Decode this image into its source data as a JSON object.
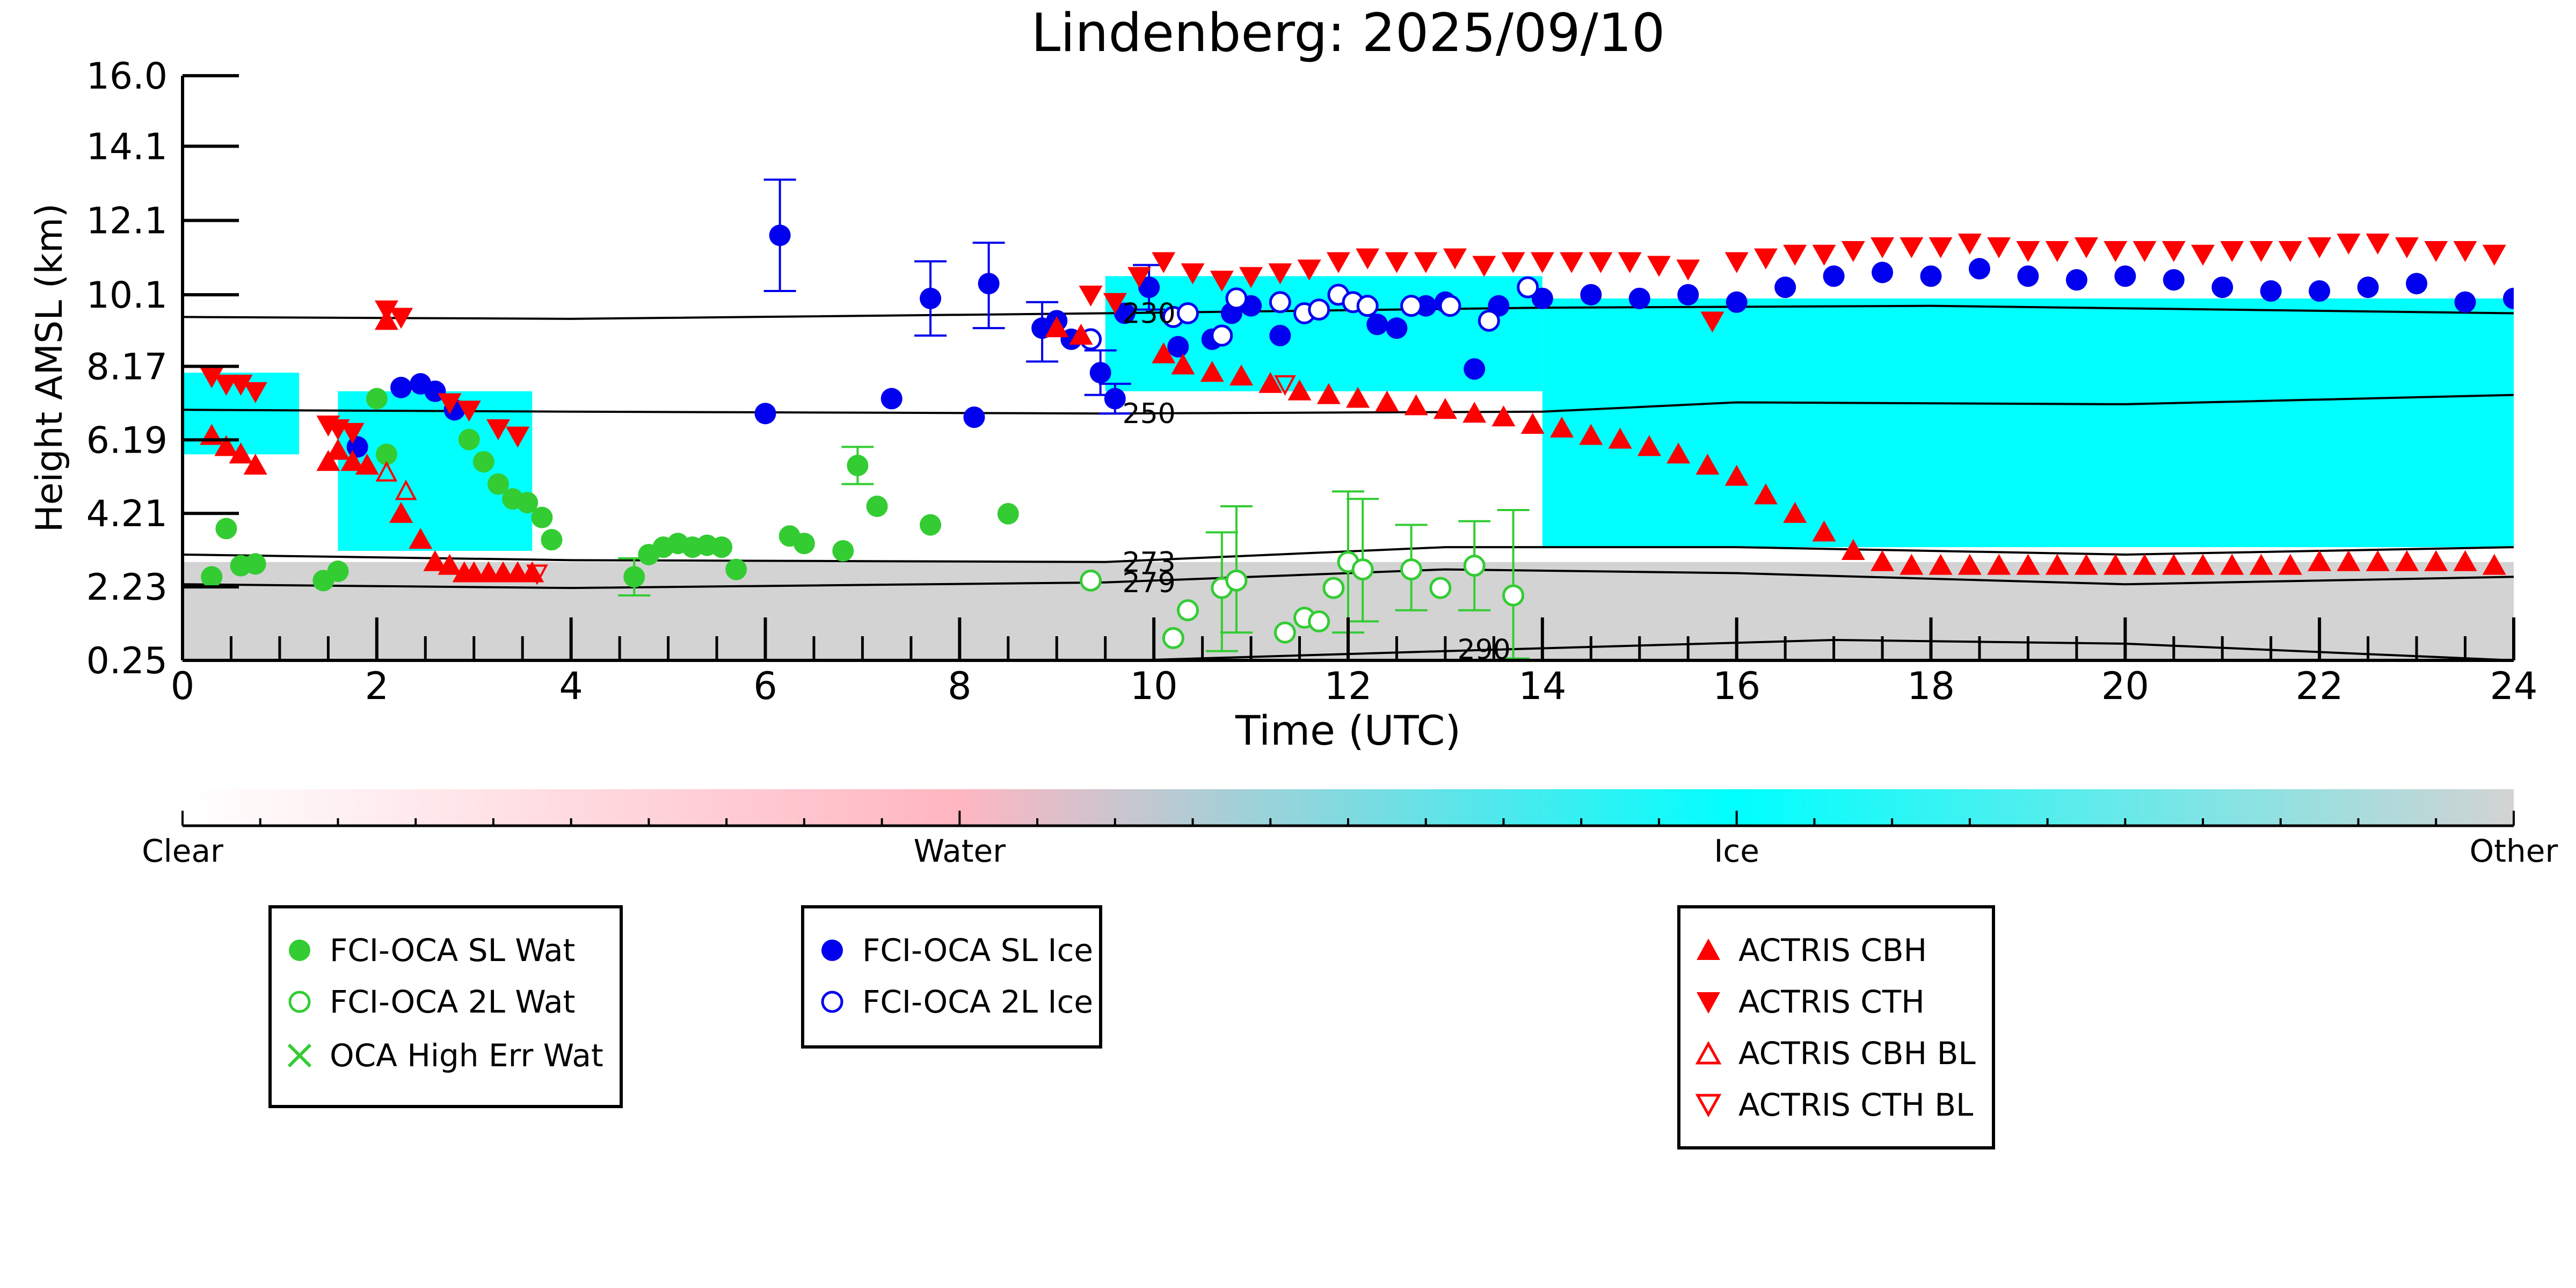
{
  "chart_data": {
    "type": "scatter",
    "title": "Lindenberg: 2025/09/10",
    "xlabel": "Time (UTC)",
    "ylabel": "Height AMSL (km)",
    "xlim": [
      0,
      24
    ],
    "ylim": [
      0.25,
      16.0
    ],
    "x_ticks": [
      "0",
      "2",
      "4",
      "6",
      "8",
      "10",
      "12",
      "14",
      "16",
      "18",
      "20",
      "22",
      "24"
    ],
    "y_ticks": [
      "0.25",
      "2.23",
      "4.21",
      "6.19",
      "8.17",
      "10.1",
      "12.1",
      "14.1",
      "16.0"
    ],
    "colorbar": {
      "labels": [
        "Clear",
        "Water",
        "Ice",
        "Other"
      ],
      "colors": [
        "#ffffff",
        "#ffb6c1",
        "#00ffff",
        "#d3d3d3"
      ]
    },
    "background_regions": [
      {
        "name": "Other",
        "color": "#d3d3d3",
        "x": [
          0,
          24
        ],
        "y": [
          0.25,
          2.9
        ]
      },
      {
        "name": "Ice",
        "color": "#00ffff",
        "x": [
          14,
          24
        ],
        "y": [
          3.3,
          10.0
        ]
      },
      {
        "name": "Ice",
        "color": "#00ffff",
        "x": [
          9.5,
          14
        ],
        "y": [
          7.5,
          10.6
        ]
      },
      {
        "name": "Ice",
        "color": "#00ffff",
        "x": [
          1.6,
          3.6
        ],
        "y": [
          3.2,
          7.5
        ]
      },
      {
        "name": "Ice",
        "color": "#00ffff",
        "x": [
          0,
          1.2
        ],
        "y": [
          5.8,
          8.0
        ]
      }
    ],
    "contours": [
      {
        "label": "230",
        "x": [
          0,
          4,
          9.5,
          14,
          18,
          24
        ],
        "y": [
          9.5,
          9.45,
          9.6,
          9.75,
          9.8,
          9.6
        ]
      },
      {
        "label": "250",
        "x": [
          0,
          4,
          9.5,
          14,
          16,
          20,
          24
        ],
        "y": [
          7.0,
          6.95,
          6.9,
          6.95,
          7.2,
          7.15,
          7.4
        ]
      },
      {
        "label": "273",
        "x": [
          0,
          4,
          9.5,
          13,
          16,
          20,
          24
        ],
        "y": [
          3.1,
          2.95,
          2.9,
          3.3,
          3.3,
          3.1,
          3.3
        ]
      },
      {
        "label": "279",
        "x": [
          0,
          4,
          9.5,
          13,
          16,
          20,
          24
        ],
        "y": [
          2.3,
          2.2,
          2.35,
          2.7,
          2.6,
          2.3,
          2.5
        ]
      },
      {
        "label": "290",
        "x": [
          9.8,
          13,
          17,
          20,
          24
        ],
        "y": [
          0.25,
          0.5,
          0.8,
          0.7,
          0.25
        ]
      }
    ],
    "series": [
      {
        "name": "FCI-OCA SL Wat",
        "marker": "filled-circle",
        "color": "#33cc33",
        "x": [
          0.3,
          0.45,
          0.6,
          0.75,
          1.45,
          1.6,
          2.0,
          2.1,
          2.95,
          3.1,
          3.25,
          3.4,
          3.55,
          3.7,
          3.8,
          4.65,
          4.8,
          4.95,
          5.1,
          5.25,
          5.4,
          5.55,
          5.7,
          6.25,
          6.4,
          6.8,
          6.95,
          7.15,
          7.7,
          8.5
        ],
        "y": [
          2.5,
          3.8,
          2.8,
          2.85,
          2.4,
          2.65,
          7.3,
          5.8,
          6.2,
          5.6,
          5.0,
          4.6,
          4.5,
          4.1,
          3.5,
          2.5,
          3.1,
          3.3,
          3.4,
          3.3,
          3.35,
          3.3,
          2.7,
          3.6,
          3.4,
          3.2,
          5.5,
          4.4,
          3.9,
          4.2
        ]
      },
      {
        "name": "FCI-OCA 2L Wat",
        "marker": "open-circle",
        "color": "#33cc33",
        "x": [
          9.35,
          10.2,
          10.35,
          10.7,
          10.85,
          11.35,
          11.55,
          11.7,
          11.85,
          12.0,
          12.15,
          12.65,
          12.95,
          13.3,
          13.7
        ],
        "y": [
          2.4,
          0.85,
          1.6,
          2.2,
          2.4,
          1.0,
          1.4,
          1.3,
          2.2,
          2.9,
          2.7,
          2.7,
          2.2,
          2.8,
          2.0
        ]
      },
      {
        "name": "OCA High Err Wat",
        "marker": "x",
        "color": "#33cc33",
        "x": [],
        "y": []
      },
      {
        "name": "FCI-OCA SL Ice",
        "marker": "filled-circle",
        "color": "#0000ee",
        "x": [
          1.8,
          2.25,
          2.45,
          2.6,
          2.8,
          6.0,
          6.15,
          7.3,
          7.7,
          8.15,
          8.3,
          8.85,
          9.0,
          9.15,
          9.45,
          9.6,
          9.7,
          9.95,
          10.25,
          10.6,
          10.8,
          11.0,
          11.3,
          12.3,
          12.5,
          12.8,
          13.0,
          13.3,
          13.55,
          14.0,
          14.5,
          15.0,
          15.5,
          16.0,
          16.5,
          17.0,
          17.5,
          18.0,
          18.5,
          19.0,
          19.5,
          20.0,
          20.5,
          21.0,
          21.5,
          22.0,
          22.5,
          23.0,
          23.5,
          24.0
        ],
        "y": [
          6.0,
          7.6,
          7.7,
          7.5,
          7.0,
          6.9,
          11.7,
          7.3,
          10.0,
          6.8,
          10.4,
          9.2,
          9.4,
          8.9,
          8.0,
          7.3,
          9.6,
          10.3,
          8.7,
          8.9,
          9.6,
          9.8,
          9.0,
          9.3,
          9.2,
          9.8,
          9.9,
          8.1,
          9.8,
          10.0,
          10.1,
          10.0,
          10.1,
          9.9,
          10.3,
          10.6,
          10.7,
          10.6,
          10.8,
          10.6,
          10.5,
          10.6,
          10.5,
          10.3,
          10.2,
          10.2,
          10.3,
          10.4,
          9.9,
          10.0
        ]
      },
      {
        "name": "FCI-OCA 2L Ice",
        "marker": "open-circle",
        "color": "#0000ee",
        "x": [
          9.35,
          10.2,
          10.35,
          10.7,
          10.85,
          11.3,
          11.55,
          11.7,
          11.9,
          12.05,
          12.2,
          12.65,
          13.05,
          13.45,
          13.85
        ],
        "y": [
          8.9,
          9.5,
          9.6,
          9.0,
          10.0,
          9.9,
          9.6,
          9.7,
          10.1,
          9.9,
          9.8,
          9.8,
          9.8,
          9.4,
          10.3
        ]
      },
      {
        "name": "ACTRIS CBH",
        "marker": "triangle-up",
        "color": "#ff0000",
        "x": [
          0.3,
          0.45,
          0.6,
          0.75,
          1.5,
          1.6,
          1.75,
          1.9,
          2.1,
          2.25,
          2.45,
          2.6,
          2.75,
          2.9,
          3.0,
          3.15,
          3.3,
          3.45,
          3.6,
          9.0,
          9.25,
          10.1,
          10.3,
          10.6,
          10.9,
          11.2,
          11.5,
          11.8,
          12.1,
          12.4,
          12.7,
          13.0,
          13.3,
          13.6,
          13.9,
          14.2,
          14.5,
          14.8,
          15.1,
          15.4,
          15.7,
          16.0,
          16.3,
          16.6,
          16.9,
          17.2,
          17.5,
          17.8,
          18.1,
          18.4,
          18.7,
          19.0,
          19.3,
          19.6,
          19.9,
          20.2,
          20.5,
          20.8,
          21.1,
          21.4,
          21.7,
          22.0,
          22.3,
          22.6,
          22.9,
          23.2,
          23.5,
          23.8
        ],
        "y": [
          6.3,
          6.0,
          5.8,
          5.5,
          5.6,
          5.9,
          5.6,
          5.5,
          9.4,
          4.2,
          3.5,
          2.9,
          2.8,
          2.6,
          2.6,
          2.6,
          2.6,
          2.6,
          2.6,
          9.2,
          9.0,
          8.5,
          8.2,
          8.0,
          7.9,
          7.7,
          7.5,
          7.4,
          7.3,
          7.2,
          7.1,
          7.0,
          6.9,
          6.8,
          6.6,
          6.5,
          6.3,
          6.2,
          6.0,
          5.8,
          5.5,
          5.2,
          4.7,
          4.2,
          3.7,
          3.2,
          2.9,
          2.8,
          2.8,
          2.8,
          2.8,
          2.8,
          2.8,
          2.8,
          2.8,
          2.8,
          2.8,
          2.8,
          2.8,
          2.8,
          2.8,
          2.9,
          2.9,
          2.9,
          2.9,
          2.9,
          2.9,
          2.8
        ]
      },
      {
        "name": "ACTRIS CTH",
        "marker": "triangle-down",
        "color": "#ff0000",
        "x": [
          0.3,
          0.45,
          0.6,
          0.75,
          1.5,
          1.6,
          1.75,
          2.1,
          2.25,
          2.75,
          2.95,
          3.25,
          3.45,
          9.35,
          9.6,
          9.85,
          10.1,
          10.4,
          10.7,
          11.0,
          11.3,
          11.6,
          11.9,
          12.2,
          12.5,
          12.8,
          13.1,
          13.4,
          13.7,
          14.0,
          14.3,
          14.6,
          14.9,
          15.2,
          15.5,
          15.75,
          16.0,
          16.3,
          16.6,
          16.9,
          17.2,
          17.5,
          17.8,
          18.1,
          18.4,
          18.7,
          19.0,
          19.3,
          19.6,
          19.9,
          20.2,
          20.5,
          20.8,
          21.1,
          21.4,
          21.7,
          22.0,
          22.3,
          22.6,
          22.9,
          23.2,
          23.5,
          23.8
        ],
        "y": [
          7.9,
          7.7,
          7.7,
          7.5,
          6.6,
          6.5,
          6.4,
          9.7,
          9.5,
          7.2,
          7.0,
          6.5,
          6.3,
          10.1,
          9.9,
          10.6,
          11.0,
          10.7,
          10.5,
          10.6,
          10.7,
          10.8,
          11.0,
          11.1,
          11.0,
          11.0,
          11.1,
          10.9,
          11.0,
          11.0,
          11.0,
          11.0,
          11.0,
          10.9,
          10.8,
          9.4,
          11.0,
          11.1,
          11.2,
          11.2,
          11.3,
          11.4,
          11.4,
          11.4,
          11.5,
          11.4,
          11.3,
          11.3,
          11.4,
          11.3,
          11.3,
          11.3,
          11.2,
          11.3,
          11.3,
          11.3,
          11.4,
          11.5,
          11.5,
          11.4,
          11.3,
          11.3,
          11.2
        ]
      },
      {
        "name": "ACTRIS CBH BL",
        "marker": "open-triangle-up",
        "color": "#ff0000",
        "x": [
          2.1,
          2.3
        ],
        "y": [
          5.3,
          4.8
        ]
      },
      {
        "name": "ACTRIS CTH BL",
        "marker": "open-triangle-down",
        "color": "#ff0000",
        "x": [
          3.65,
          11.35
        ],
        "y": [
          2.6,
          7.7
        ]
      }
    ],
    "error_bars": [
      {
        "series": "FCI-OCA SL Ice",
        "x": 6.15,
        "y_low": 10.2,
        "y_high": 13.2
      },
      {
        "series": "FCI-OCA SL Ice",
        "x": 7.7,
        "y_low": 9.0,
        "y_high": 11.0
      },
      {
        "series": "FCI-OCA SL Ice",
        "x": 8.3,
        "y_low": 9.2,
        "y_high": 11.5
      },
      {
        "series": "FCI-OCA SL Ice",
        "x": 8.85,
        "y_low": 8.3,
        "y_high": 9.9
      },
      {
        "series": "FCI-OCA SL Ice",
        "x": 9.45,
        "y_low": 7.4,
        "y_high": 8.6
      },
      {
        "series": "FCI-OCA SL Ice",
        "x": 9.6,
        "y_low": 6.9,
        "y_high": 7.7
      },
      {
        "series": "FCI-OCA SL Ice",
        "x": 9.95,
        "y_low": 9.7,
        "y_high": 10.9
      },
      {
        "series": "FCI-OCA SL Wat",
        "x": 6.95,
        "y_low": 5.0,
        "y_high": 6.0
      },
      {
        "series": "FCI-OCA SL Wat",
        "x": 4.65,
        "y_low": 2.0,
        "y_high": 3.0
      },
      {
        "series": "FCI-OCA 2L Wat",
        "x": 10.7,
        "y_low": 0.5,
        "y_high": 3.7
      },
      {
        "series": "FCI-OCA 2L Wat",
        "x": 10.85,
        "y_low": 1.0,
        "y_high": 4.4
      },
      {
        "series": "FCI-OCA 2L Wat",
        "x": 12.0,
        "y_low": 1.0,
        "y_high": 4.8
      },
      {
        "series": "FCI-OCA 2L Wat",
        "x": 12.15,
        "y_low": 1.3,
        "y_high": 4.6
      },
      {
        "series": "FCI-OCA 2L Wat",
        "x": 12.65,
        "y_low": 1.6,
        "y_high": 3.9
      },
      {
        "series": "FCI-OCA 2L Wat",
        "x": 13.3,
        "y_low": 1.6,
        "y_high": 4.0
      },
      {
        "series": "FCI-OCA 2L Wat",
        "x": 13.7,
        "y_low": 0.3,
        "y_high": 4.3
      }
    ],
    "legend_placement": "bottom"
  }
}
